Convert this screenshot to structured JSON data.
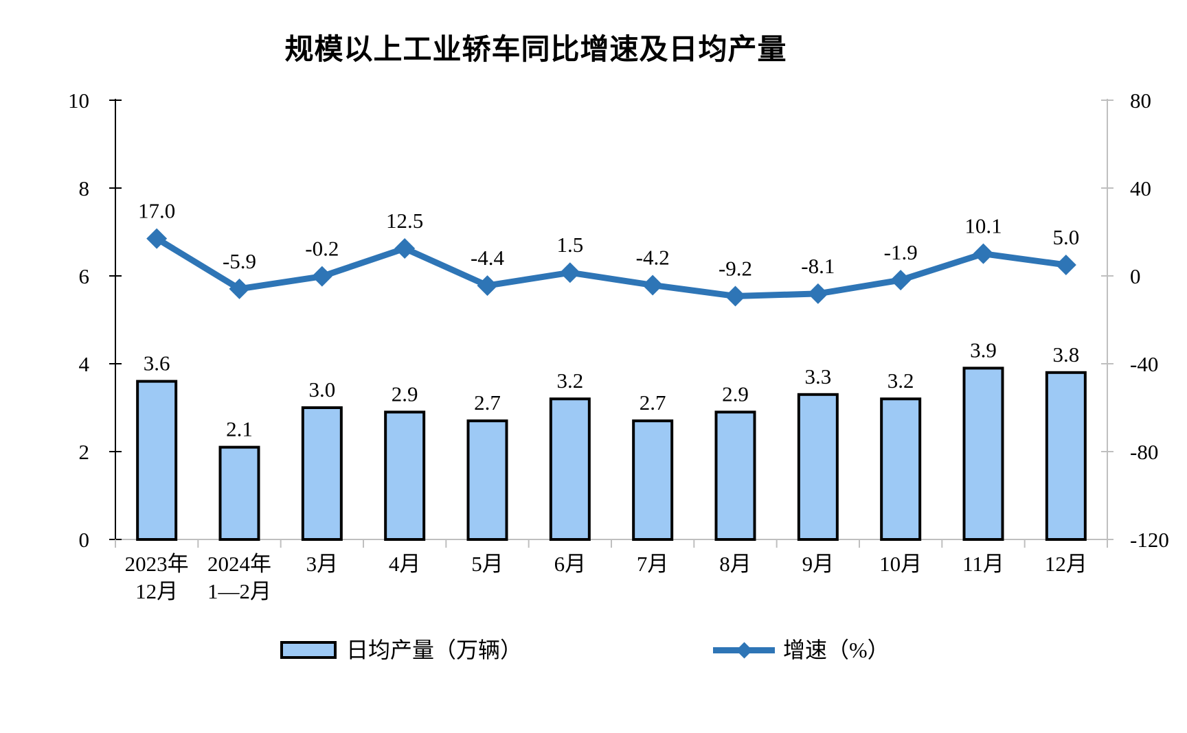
{
  "title": "规模以上工业轿车同比增速及日均产量",
  "chart_data": {
    "type": "bar",
    "title": "规模以上工业轿车同比增速及日均产量",
    "categories": [
      "2023年\n12月",
      "2024年\n1—2月",
      "3月",
      "4月",
      "5月",
      "6月",
      "7月",
      "8月",
      "9月",
      "10月",
      "11月",
      "12月"
    ],
    "series": [
      {
        "name": "日均产量（万辆）",
        "type": "bar",
        "axis": "left",
        "color": "#9DC9F5",
        "border_color": "#000000",
        "values": [
          3.6,
          2.1,
          3.0,
          2.9,
          2.7,
          3.2,
          2.7,
          2.9,
          3.3,
          3.2,
          3.9,
          3.8
        ]
      },
      {
        "name": "增速（%）",
        "type": "line",
        "axis": "right",
        "color": "#2E75B6",
        "marker": "diamond",
        "values": [
          17.0,
          -5.9,
          -0.2,
          12.5,
          -4.4,
          1.5,
          -4.2,
          -9.2,
          -8.1,
          -1.9,
          10.1,
          5.0
        ]
      }
    ],
    "left_axis": {
      "min": 0,
      "max": 10,
      "step": 2,
      "tick_labels": [
        "0",
        "2",
        "4",
        "6",
        "8",
        "10"
      ]
    },
    "right_axis": {
      "min": -120,
      "max": 80,
      "step": 40,
      "tick_labels": [
        "-120",
        "-80",
        "-40",
        "0",
        "40",
        "80"
      ]
    },
    "grid": false,
    "legend_position": "bottom",
    "value_label_decimals": 1
  },
  "colors": {
    "axis_dark": "#000000",
    "axis_light": "#BFBFBF",
    "text": "#000000",
    "background": "#FFFFFF"
  }
}
